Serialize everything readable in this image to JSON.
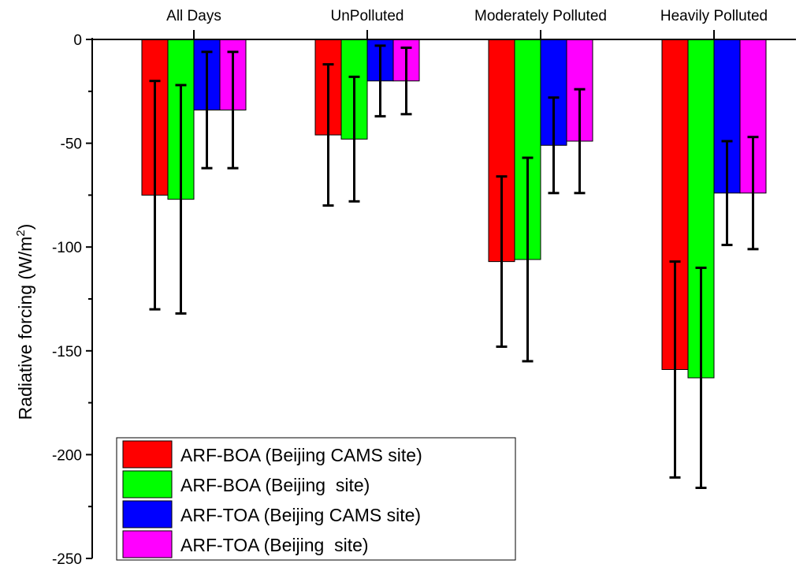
{
  "chart_data": {
    "type": "bar",
    "title": "",
    "xlabel": "",
    "ylabel": "Radiative forcing (W/m",
    "ylabel_superscript": "2",
    "ylabel_suffix": ")",
    "ylim": [
      -250,
      0
    ],
    "yticks": [
      0,
      -50,
      -100,
      -150,
      -200,
      -250
    ],
    "categories": [
      "All Days",
      "UnPolluted",
      "Moderately Polluted",
      "Heavily Polluted"
    ],
    "series": [
      {
        "name": "ARF-BOA (Beijing CAMS site)",
        "color": "#ff0000",
        "values": [
          -75,
          -46,
          -107,
          -159
        ],
        "errors": [
          55,
          34,
          41,
          52
        ]
      },
      {
        "name": "ARF-BOA (Beijing  site)",
        "color": "#00ff00",
        "values": [
          -77,
          -48,
          -106,
          -163
        ],
        "errors": [
          55,
          30,
          49,
          53
        ]
      },
      {
        "name": "ARF-TOA (Beijing CAMS site)",
        "color": "#0000ff",
        "values": [
          -34,
          -20,
          -51,
          -74
        ],
        "errors": [
          28,
          17,
          23,
          25
        ]
      },
      {
        "name": "ARF-TOA (Beijing  site)",
        "color": "#ff00ff",
        "values": [
          -34,
          -20,
          -49,
          -74
        ],
        "errors": [
          28,
          16,
          25,
          27
        ]
      }
    ],
    "legend": "bottom-left",
    "grid": false
  }
}
